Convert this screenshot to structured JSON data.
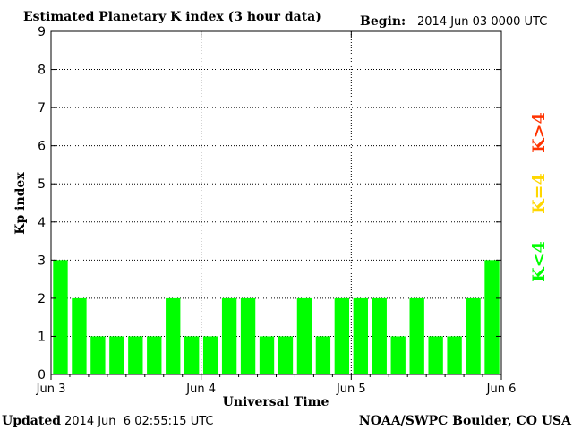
{
  "header": {
    "title": "Estimated Planetary K index (3 hour data)",
    "begin_label": "Begin:",
    "begin_value": "2014 Jun 03 0000 UTC"
  },
  "footer": {
    "updated_label": "Updated",
    "updated_value": "2014 Jun  6 02:55:15 UTC",
    "source": "NOAA/SWPC Boulder, CO USA"
  },
  "legend": {
    "low": "K<4",
    "equal": "K=4",
    "high": "K>4"
  },
  "colors": {
    "low": "#00ff00",
    "equal": "#ffd700",
    "high": "#ff3300"
  },
  "chart_data": {
    "type": "bar",
    "title": "Estimated Planetary K index (3 hour data)",
    "xlabel": "Universal Time",
    "ylabel": "Kp index",
    "ylim": [
      0,
      9
    ],
    "yticks": [
      0,
      1,
      2,
      3,
      4,
      5,
      6,
      7,
      8,
      9
    ],
    "xtick_labels": [
      "Jun 3",
      "Jun 4",
      "Jun 5",
      "Jun 6"
    ],
    "bars_per_day": 8,
    "grid": true,
    "values": [
      3,
      2,
      1,
      1,
      1,
      1,
      2,
      1,
      1,
      2,
      2,
      1,
      1,
      2,
      1,
      2,
      2,
      2,
      1,
      2,
      1,
      1,
      2,
      3
    ]
  }
}
